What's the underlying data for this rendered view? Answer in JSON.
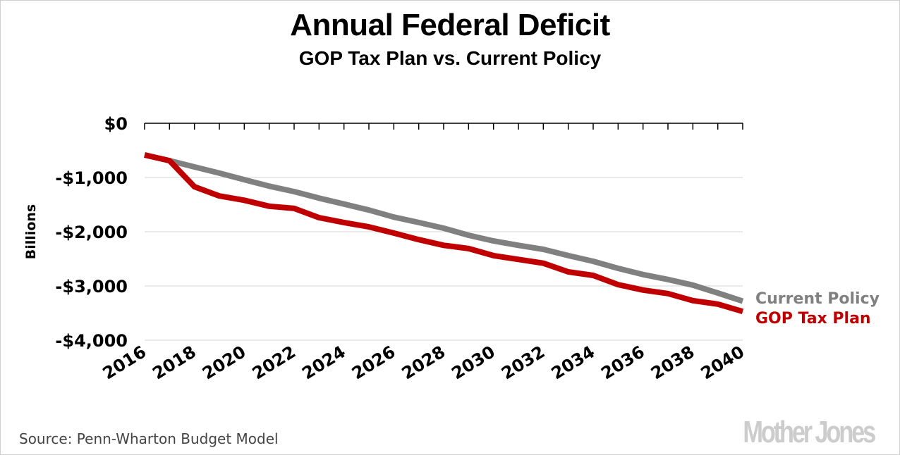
{
  "chart_data": {
    "type": "line",
    "title": "Annual Federal Deficit",
    "subtitle": "GOP Tax Plan vs. Current Policy",
    "xlabel": "",
    "ylabel": "Billions",
    "x": [
      2016,
      2017,
      2018,
      2019,
      2020,
      2021,
      2022,
      2023,
      2024,
      2025,
      2026,
      2027,
      2028,
      2029,
      2030,
      2031,
      2032,
      2033,
      2034,
      2035,
      2036,
      2037,
      2038,
      2039,
      2040
    ],
    "xticks": [
      2016,
      2018,
      2020,
      2022,
      2024,
      2026,
      2028,
      2030,
      2032,
      2034,
      2036,
      2038,
      2040
    ],
    "xtick_labels": [
      "2016",
      "2018",
      "2020",
      "2022",
      "2024",
      "2026",
      "2028",
      "2030",
      "2032",
      "2034",
      "2036",
      "2038",
      "2040"
    ],
    "yticks": [
      0,
      -1000,
      -2000,
      -3000,
      -4000
    ],
    "ytick_labels": [
      "$0",
      "-$1,000",
      "-$2,000",
      "-$3,000",
      "-$4,000"
    ],
    "xlim": [
      2016,
      2040
    ],
    "ylim": [
      -4000,
      0
    ],
    "grid": true,
    "legend_position": "right-end-of-lines",
    "series": [
      {
        "name": "Current Policy",
        "color": "#808080",
        "values": [
          -585,
          -690,
          -805,
          -920,
          -1040,
          -1160,
          -1260,
          -1380,
          -1490,
          -1600,
          -1730,
          -1830,
          -1935,
          -2065,
          -2170,
          -2250,
          -2325,
          -2440,
          -2545,
          -2675,
          -2790,
          -2880,
          -2985,
          -3130,
          -3280
        ]
      },
      {
        "name": "GOP Tax Plan",
        "color": "#c00000",
        "values": [
          -585,
          -690,
          -1170,
          -1340,
          -1420,
          -1530,
          -1570,
          -1740,
          -1830,
          -1910,
          -2025,
          -2145,
          -2250,
          -2310,
          -2440,
          -2510,
          -2580,
          -2740,
          -2805,
          -2975,
          -3075,
          -3140,
          -3270,
          -3335,
          -3470
        ]
      }
    ]
  },
  "footer": {
    "source": "Source: Penn-Wharton Budget Model",
    "logo": "Mother Jones"
  }
}
